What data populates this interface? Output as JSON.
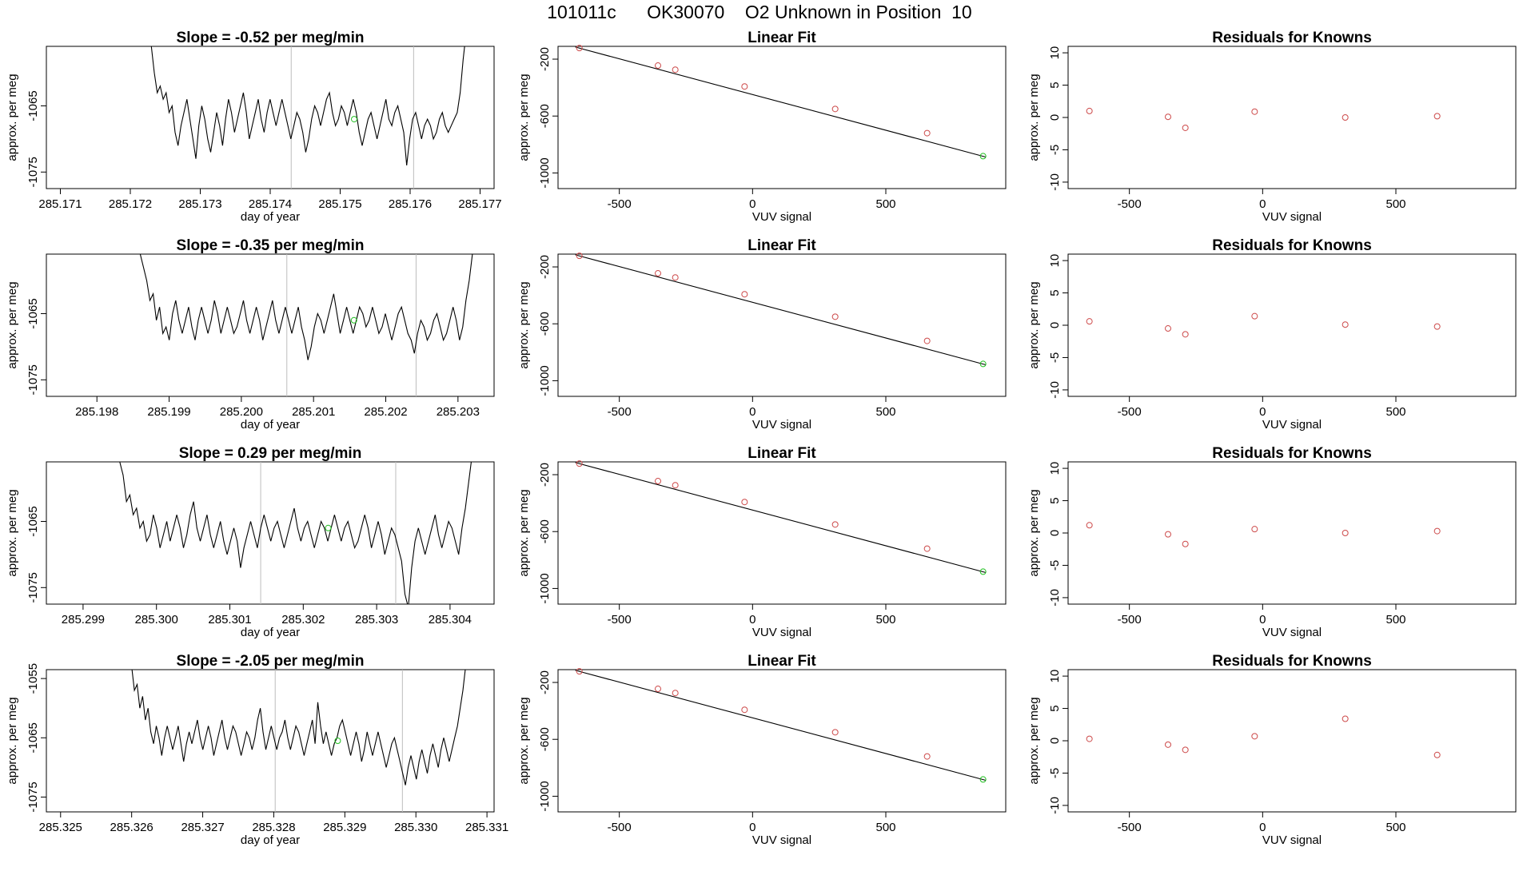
{
  "figure": {
    "title": "101011c      OK30070    O2 Unknown in Position  10"
  },
  "colors": {
    "trace": "#000000",
    "fit_points": "#cd4a4a",
    "unknown_point": "#22c022",
    "window_lines": "#bdbdbd",
    "axes": "#000000"
  },
  "chart_data": [
    {
      "type": "line",
      "panel": "timeseries",
      "row": 1,
      "title": "Slope =  -0.52  per meg/min",
      "xlabel": "day of year",
      "ylabel": "approx. per meg",
      "xlim": [
        285.1708,
        285.1772
      ],
      "ylim": [
        -1077.5,
        -1056
      ],
      "xticks": [
        "285.171",
        "285.172",
        "285.173",
        "285.174",
        "285.175",
        "285.176",
        "285.177"
      ],
      "yticks": [
        "-1065",
        "-1075"
      ],
      "xstart": 285.1723,
      "xend": 285.1768,
      "window_lines": [
        285.1743,
        285.17605
      ],
      "unknown_point": [
        285.1752,
        -1067.0
      ],
      "values": [
        -1056,
        -1060,
        -1063,
        -1062,
        -1064,
        -1063,
        -1066,
        -1065,
        -1069,
        -1071,
        -1068,
        -1066,
        -1064,
        -1067,
        -1070,
        -1073,
        -1068,
        -1065,
        -1067,
        -1070,
        -1072,
        -1069,
        -1066,
        -1068,
        -1071,
        -1067,
        -1064,
        -1066,
        -1069,
        -1067,
        -1065,
        -1063,
        -1066,
        -1070,
        -1068,
        -1066,
        -1064,
        -1067,
        -1069,
        -1066,
        -1064,
        -1066,
        -1068,
        -1066,
        -1064,
        -1066,
        -1068,
        -1070,
        -1068,
        -1066,
        -1067,
        -1069,
        -1072,
        -1070,
        -1067,
        -1065,
        -1066,
        -1068,
        -1066,
        -1064,
        -1063,
        -1066,
        -1068,
        -1067,
        -1065,
        -1066,
        -1068,
        -1066,
        -1064,
        -1066,
        -1069,
        -1071,
        -1069,
        -1067,
        -1066,
        -1068,
        -1070,
        -1068,
        -1066,
        -1064,
        -1067,
        -1068,
        -1066,
        -1065,
        -1067,
        -1069,
        -1074,
        -1070,
        -1067,
        -1066,
        -1068,
        -1070,
        -1068,
        -1067,
        -1068,
        -1070,
        -1069,
        -1067,
        -1066,
        -1068,
        -1069,
        -1068,
        -1067,
        -1066,
        -1063,
        -1058,
        -1054
      ]
    },
    {
      "type": "scatter",
      "panel": "fit",
      "row": 1,
      "title": "Linear Fit",
      "xlabel": "VUV signal",
      "ylabel": "approx. per meg",
      "xlim": [
        -730,
        950
      ],
      "ylim": [
        -1110,
        -110
      ],
      "xticks": [
        "-500",
        "0",
        "500"
      ],
      "yticks": [
        "-200",
        "-600",
        "-1000"
      ],
      "points": [
        [
          -650,
          -122
        ],
        [
          -355,
          -245
        ],
        [
          -290,
          -274
        ],
        [
          -30,
          -392
        ],
        [
          310,
          -550
        ],
        [
          655,
          -720
        ]
      ],
      "unknown_point": [
        865,
        -882
      ],
      "fit_line": [
        [
          -665,
          -115
        ],
        [
          875,
          -888
        ]
      ]
    },
    {
      "type": "scatter",
      "panel": "residuals",
      "row": 1,
      "title": "Residuals for Knowns",
      "xlabel": "VUV signal",
      "ylabel": "approx. per meg",
      "xlim": [
        -730,
        950
      ],
      "ylim": [
        -11,
        11
      ],
      "xticks": [
        "-500",
        "0",
        "500"
      ],
      "yticks": [
        "10",
        "5",
        "0",
        "-5",
        "-10"
      ],
      "points": [
        [
          -650,
          1.0
        ],
        [
          -355,
          0.1
        ],
        [
          -290,
          -1.6
        ],
        [
          -30,
          0.9
        ],
        [
          310,
          0.0
        ],
        [
          655,
          0.2
        ]
      ]
    },
    {
      "type": "line",
      "panel": "timeseries",
      "row": 2,
      "title": "Slope =  -0.35  per meg/min",
      "xlabel": "day of year",
      "ylabel": "approx. per meg",
      "xlim": [
        285.1973,
        285.2035
      ],
      "ylim": [
        -1077.5,
        -1056
      ],
      "xticks": [
        "285.198",
        "285.199",
        "285.200",
        "285.201",
        "285.202",
        "285.203"
      ],
      "yticks": [
        "-1065",
        "-1075"
      ],
      "xstart": 285.1986,
      "xend": 285.2032,
      "window_lines": [
        285.20063,
        285.20242
      ],
      "unknown_point": [
        285.20156,
        -1066.0
      ],
      "values": [
        -1056,
        -1058,
        -1060,
        -1063,
        -1062,
        -1066,
        -1064,
        -1068,
        -1067,
        -1069,
        -1065,
        -1063,
        -1066,
        -1068,
        -1066,
        -1064,
        -1067,
        -1069,
        -1066,
        -1064,
        -1066,
        -1068,
        -1066,
        -1063,
        -1065,
        -1068,
        -1066,
        -1064,
        -1066,
        -1068,
        -1067,
        -1065,
        -1063,
        -1066,
        -1068,
        -1066,
        -1064,
        -1066,
        -1069,
        -1067,
        -1065,
        -1063,
        -1066,
        -1068,
        -1066,
        -1064,
        -1066,
        -1068,
        -1066,
        -1064,
        -1067,
        -1069,
        -1072,
        -1070,
        -1067,
        -1065,
        -1066,
        -1068,
        -1066,
        -1064,
        -1062,
        -1065,
        -1068,
        -1066,
        -1064,
        -1066,
        -1068,
        -1066,
        -1064,
        -1065,
        -1067,
        -1066,
        -1064,
        -1066,
        -1068,
        -1067,
        -1065,
        -1067,
        -1069,
        -1067,
        -1065,
        -1064,
        -1066,
        -1068,
        -1069,
        -1071,
        -1068,
        -1066,
        -1067,
        -1069,
        -1068,
        -1066,
        -1065,
        -1067,
        -1069,
        -1068,
        -1066,
        -1064,
        -1066,
        -1069,
        -1067,
        -1063,
        -1060,
        -1056
      ]
    },
    {
      "type": "scatter",
      "panel": "fit",
      "row": 2,
      "title": "Linear Fit",
      "xlabel": "VUV signal",
      "ylabel": "approx. per meg",
      "xlim": [
        -730,
        950
      ],
      "ylim": [
        -1110,
        -110
      ],
      "xticks": [
        "-500",
        "0",
        "500"
      ],
      "yticks": [
        "-200",
        "-600",
        "-1000"
      ],
      "points": [
        [
          -650,
          -122
        ],
        [
          -355,
          -245
        ],
        [
          -290,
          -274
        ],
        [
          -30,
          -392
        ],
        [
          310,
          -550
        ],
        [
          655,
          -720
        ]
      ],
      "unknown_point": [
        865,
        -882
      ],
      "fit_line": [
        [
          -665,
          -115
        ],
        [
          875,
          -888
        ]
      ]
    },
    {
      "type": "scatter",
      "panel": "residuals",
      "row": 2,
      "title": "Residuals for Knowns",
      "xlabel": "VUV signal",
      "ylabel": "approx. per meg",
      "xlim": [
        -730,
        950
      ],
      "ylim": [
        -11,
        11
      ],
      "xticks": [
        "-500",
        "0",
        "500"
      ],
      "yticks": [
        "10",
        "5",
        "0",
        "-5",
        "-10"
      ],
      "points": [
        [
          -650,
          0.6
        ],
        [
          -355,
          -0.5
        ],
        [
          -290,
          -1.4
        ],
        [
          -30,
          1.4
        ],
        [
          310,
          0.1
        ],
        [
          655,
          -0.2
        ]
      ]
    },
    {
      "type": "line",
      "panel": "timeseries",
      "row": 3,
      "title": "Slope =  0.29  per meg/min",
      "xlabel": "day of year",
      "ylabel": "approx. per meg",
      "xlim": [
        285.2985,
        285.3046
      ],
      "ylim": [
        -1077.5,
        -1056
      ],
      "xticks": [
        "285.299",
        "285.300",
        "285.301",
        "285.302",
        "285.303",
        "285.304"
      ],
      "yticks": [
        "-1065",
        "-1075"
      ],
      "xstart": 285.2995,
      "xend": 285.3043,
      "window_lines": [
        285.30142,
        285.30326
      ],
      "unknown_point": [
        285.30234,
        -1066.0
      ],
      "values": [
        -1056,
        -1058,
        -1062,
        -1061,
        -1064,
        -1063,
        -1066,
        -1065,
        -1068,
        -1067,
        -1064,
        -1066,
        -1069,
        -1067,
        -1065,
        -1068,
        -1066,
        -1064,
        -1066,
        -1069,
        -1067,
        -1064,
        -1062,
        -1066,
        -1068,
        -1066,
        -1064,
        -1067,
        -1069,
        -1067,
        -1065,
        -1068,
        -1070,
        -1068,
        -1066,
        -1068,
        -1072,
        -1069,
        -1067,
        -1065,
        -1067,
        -1069,
        -1066,
        -1064,
        -1066,
        -1068,
        -1066,
        -1065,
        -1067,
        -1069,
        -1067,
        -1065,
        -1063,
        -1066,
        -1068,
        -1066,
        -1065,
        -1067,
        -1069,
        -1067,
        -1065,
        -1066,
        -1068,
        -1066,
        -1064,
        -1066,
        -1068,
        -1066,
        -1065,
        -1067,
        -1069,
        -1068,
        -1066,
        -1064,
        -1066,
        -1069,
        -1067,
        -1065,
        -1067,
        -1070,
        -1068,
        -1066,
        -1067,
        -1069,
        -1071,
        -1076,
        -1078,
        -1072,
        -1068,
        -1066,
        -1068,
        -1070,
        -1068,
        -1066,
        -1064,
        -1067,
        -1069,
        -1067,
        -1065,
        -1066,
        -1068,
        -1070,
        -1066,
        -1063,
        -1059,
        -1055
      ]
    },
    {
      "type": "scatter",
      "panel": "fit",
      "row": 3,
      "title": "Linear Fit",
      "xlabel": "VUV signal",
      "ylabel": "approx. per meg",
      "xlim": [
        -730,
        950
      ],
      "ylim": [
        -1110,
        -110
      ],
      "xticks": [
        "-500",
        "0",
        "500"
      ],
      "yticks": [
        "-200",
        "-600",
        "-1000"
      ],
      "points": [
        [
          -650,
          -122
        ],
        [
          -355,
          -245
        ],
        [
          -290,
          -274
        ],
        [
          -30,
          -392
        ],
        [
          310,
          -550
        ],
        [
          655,
          -720
        ]
      ],
      "unknown_point": [
        865,
        -882
      ],
      "fit_line": [
        [
          -665,
          -115
        ],
        [
          875,
          -888
        ]
      ]
    },
    {
      "type": "scatter",
      "panel": "residuals",
      "row": 3,
      "title": "Residuals for Knowns",
      "xlabel": "VUV signal",
      "ylabel": "approx. per meg",
      "xlim": [
        -730,
        950
      ],
      "ylim": [
        -11,
        11
      ],
      "xticks": [
        "-500",
        "0",
        "500"
      ],
      "yticks": [
        "10",
        "5",
        "0",
        "-5",
        "-10"
      ],
      "points": [
        [
          -650,
          1.2
        ],
        [
          -355,
          -0.2
        ],
        [
          -290,
          -1.7
        ],
        [
          -30,
          0.6
        ],
        [
          310,
          0.0
        ],
        [
          655,
          0.3
        ]
      ]
    },
    {
      "type": "line",
      "panel": "timeseries",
      "row": 4,
      "title": "Slope =  -2.05  per meg/min",
      "xlabel": "day of year",
      "ylabel": "approx. per meg",
      "xlim": [
        285.3248,
        285.3311
      ],
      "ylim": [
        -1077.5,
        -1053.5
      ],
      "xticks": [
        "285.325",
        "285.326",
        "285.327",
        "285.328",
        "285.329",
        "285.330",
        "285.331"
      ],
      "yticks": [
        "-1055",
        "-1065",
        "-1075"
      ],
      "xstart": 285.326,
      "xend": 285.3307,
      "window_lines": [
        285.32802,
        285.32981
      ],
      "unknown_point": [
        285.3289,
        -1065.5
      ],
      "values": [
        -1053,
        -1057,
        -1056,
        -1060,
        -1058,
        -1062,
        -1060,
        -1064,
        -1066,
        -1063,
        -1065,
        -1068,
        -1065,
        -1063,
        -1065,
        -1067,
        -1065,
        -1063,
        -1066,
        -1069,
        -1066,
        -1064,
        -1066,
        -1064,
        -1062,
        -1065,
        -1067,
        -1065,
        -1063,
        -1065,
        -1068,
        -1066,
        -1064,
        -1062,
        -1065,
        -1067,
        -1065,
        -1063,
        -1064,
        -1066,
        -1068,
        -1066,
        -1064,
        -1065,
        -1067,
        -1065,
        -1062,
        -1060,
        -1064,
        -1067,
        -1065,
        -1063,
        -1065,
        -1067,
        -1065,
        -1064,
        -1062,
        -1065,
        -1067,
        -1065,
        -1063,
        -1064,
        -1066,
        -1068,
        -1066,
        -1064,
        -1062,
        -1066,
        -1059,
        -1063,
        -1066,
        -1064,
        -1066,
        -1068,
        -1066,
        -1065,
        -1063,
        -1062,
        -1064,
        -1066,
        -1068,
        -1066,
        -1064,
        -1066,
        -1069,
        -1067,
        -1064,
        -1066,
        -1068,
        -1066,
        -1064,
        -1066,
        -1068,
        -1070,
        -1068,
        -1066,
        -1065,
        -1067,
        -1069,
        -1071,
        -1073,
        -1070,
        -1068,
        -1070,
        -1072,
        -1069,
        -1067,
        -1069,
        -1071,
        -1068,
        -1066,
        -1068,
        -1070,
        -1067,
        -1065,
        -1067,
        -1069,
        -1067,
        -1065,
        -1063,
        -1060,
        -1057,
        -1053
      ]
    },
    {
      "type": "scatter",
      "panel": "fit",
      "row": 4,
      "title": "Linear Fit",
      "xlabel": "VUV signal",
      "ylabel": "approx. per meg",
      "xlim": [
        -730,
        950
      ],
      "ylim": [
        -1110,
        -110
      ],
      "xticks": [
        "-500",
        "0",
        "500"
      ],
      "yticks": [
        "-200",
        "-600",
        "-1000"
      ],
      "points": [
        [
          -650,
          -122
        ],
        [
          -355,
          -245
        ],
        [
          -290,
          -274
        ],
        [
          -30,
          -392
        ],
        [
          310,
          -550
        ],
        [
          655,
          -720
        ]
      ],
      "unknown_point": [
        865,
        -882
      ],
      "fit_line": [
        [
          -665,
          -115
        ],
        [
          875,
          -888
        ]
      ]
    },
    {
      "type": "scatter",
      "panel": "residuals",
      "row": 4,
      "title": "Residuals for Knowns",
      "xlabel": "VUV signal",
      "ylabel": "approx. per meg",
      "xlim": [
        -730,
        950
      ],
      "ylim": [
        -11,
        11
      ],
      "xticks": [
        "-500",
        "0",
        "500"
      ],
      "yticks": [
        "10",
        "5",
        "0",
        "-5",
        "-10"
      ],
      "points": [
        [
          -650,
          0.3
        ],
        [
          -355,
          -0.6
        ],
        [
          -290,
          -1.4
        ],
        [
          -30,
          0.7
        ],
        [
          310,
          3.4
        ],
        [
          655,
          -2.2
        ]
      ]
    }
  ]
}
